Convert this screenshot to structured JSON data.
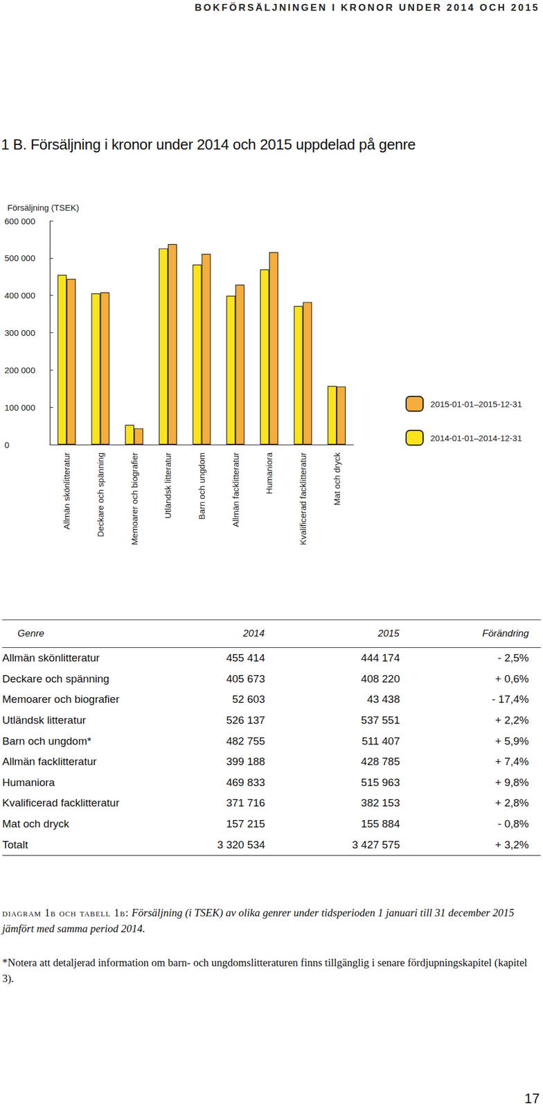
{
  "header": "BOKFÖRSÄLJNINGEN I KRONOR UNDER 2014 OCH 2015",
  "section_title": "1 B. Försäljning i kronor under 2014 och 2015 uppdelad på genre",
  "chart_data": {
    "type": "bar",
    "ylabel": "Försäljning (TSEK)",
    "categories": [
      "Allmän skönlitteratur",
      "Deckare och spänning",
      "Memoarer och biografier",
      "Utländsk litteratur",
      "Barn och ungdom",
      "Allmän facklitteratur",
      "Humaniora",
      "Kvalificerad facklitteratur",
      "Mat och dryck"
    ],
    "series": [
      {
        "name": "2014-01-01–2014-12-31",
        "color": "#FBE41B",
        "values": [
          455414,
          405673,
          52603,
          526137,
          482755,
          399188,
          469833,
          371716,
          157215
        ]
      },
      {
        "name": "2015-01-01–2015-12-31",
        "color": "#F5AE3C",
        "values": [
          444174,
          408220,
          43438,
          537551,
          511407,
          428785,
          515963,
          382153,
          155884
        ]
      }
    ],
    "ylim": [
      0,
      600000
    ],
    "yticks": [
      0,
      {
        "value": 100000,
        "label": "100 000"
      },
      {
        "value": 200000,
        "label": "200 000"
      },
      {
        "value": 300000,
        "label": "300 000"
      },
      {
        "value": 400000,
        "label": "400 000"
      },
      {
        "value": 500000,
        "label": "500 000"
      },
      {
        "value": 600000,
        "label": "600 000"
      }
    ],
    "grid": false,
    "legend": "right",
    "data_labels": false
  },
  "table": {
    "columns": [
      "Genre",
      "2014",
      "2015",
      "Förändring"
    ],
    "rows": [
      [
        "Allmän skönlitteratur",
        "455 414",
        "444 174",
        "- 2,5%"
      ],
      [
        "Deckare och spänning",
        "405 673",
        "408 220",
        "+ 0,6%"
      ],
      [
        "Memoarer och biografier",
        "52 603",
        "43 438",
        "- 17,4%"
      ],
      [
        "Utländsk litteratur",
        "526 137",
        "537 551",
        "+ 2,2%"
      ],
      [
        "Barn och ungdom*",
        "482 755",
        "511 407",
        "+ 5,9%"
      ],
      [
        "Allmän facklitteratur",
        "399 188",
        "428 785",
        "+ 7,4%"
      ],
      [
        "Humaniora",
        "469 833",
        "515 963",
        "+ 9,8%"
      ],
      [
        "Kvalificerad facklitteratur",
        "371 716",
        "382 153",
        "+ 2,8%"
      ],
      [
        "Mat och dryck",
        "157 215",
        "155 884",
        "- 0,8%"
      ],
      [
        "Totalt",
        "3 320 534",
        "3 427 575",
        "+ 3,2%"
      ]
    ]
  },
  "caption": {
    "label": "diagram 1b och tabell 1b:",
    "text": "Försäljning (i TSEK) av olika genrer under tidsperioden 1 januari till 31 december 2015 jämfört med samma period 2014."
  },
  "footnote": "*Notera att detaljerad information om barn- och ungdomslitteraturen finns tillgänglig i senare fördjupningskapitel (kapitel 3).",
  "page_number": "17"
}
